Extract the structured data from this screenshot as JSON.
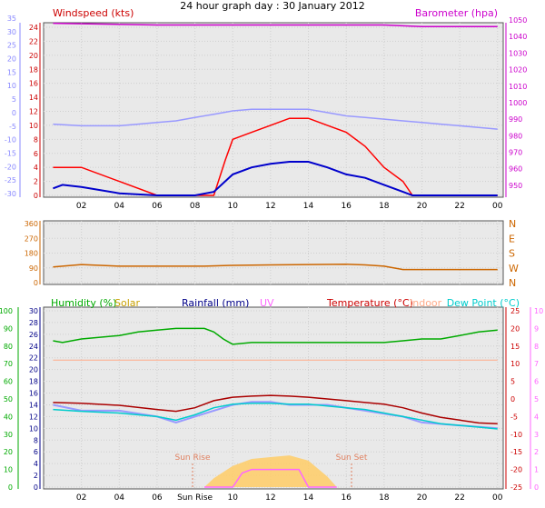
{
  "title": "24 hour graph day : 30 January 2012",
  "colors": {
    "windspeed": "#cc0000",
    "gust": "#ff0000",
    "wind_avg": "#0000cc",
    "barometer": "#cc00cc",
    "temperature_label": "#cc0000",
    "humidity": "#00aa00",
    "solar": "#c8a000",
    "rainfall": "#000088",
    "uv": "#ff66ff",
    "indoor": "#ffaa88",
    "dewpoint": "#00cccc",
    "winddir": "#cc6600",
    "grid": "#cfcfcf"
  },
  "x_ticks": [
    "02",
    "04",
    "06",
    "08",
    "10",
    "12",
    "14",
    "16",
    "18",
    "20",
    "22",
    "00"
  ],
  "x_ticks_bottom": [
    "02",
    "04",
    "06",
    "Sun Rise",
    "10",
    "12",
    "14",
    "16",
    "18",
    "20",
    "22",
    "00"
  ],
  "chart_data": [
    {
      "type": "line",
      "name": "wind",
      "labels": {
        "left": "Windspeed (kts)",
        "right": "Barometer (hpa)"
      },
      "left_axis": {
        "ylim": [
          0,
          24
        ],
        "ticks": [
          "0",
          "2",
          "4",
          "6",
          "8",
          "10",
          "12",
          "14",
          "16",
          "18",
          "20",
          "22",
          "24"
        ]
      },
      "left_outer_axis": {
        "ylim": [
          -30,
          35
        ],
        "ticks": [
          "-30",
          "-25",
          "-20",
          "-15",
          "-10",
          "-5",
          "0",
          "5",
          "10",
          "15",
          "20",
          "25",
          "30",
          "35"
        ]
      },
      "right_axis": {
        "ylim": [
          945,
          1050
        ],
        "ticks": [
          "950",
          "960",
          "970",
          "980",
          "990",
          "1000",
          "1010",
          "1020",
          "1030",
          "1040",
          "1050"
        ]
      },
      "series": [
        {
          "x": [
            0.5,
            2,
            4,
            6,
            7,
            8,
            9,
            9.6,
            10,
            11,
            12,
            13,
            14,
            15,
            16,
            17,
            18,
            19,
            19.5,
            20,
            22,
            24
          ],
          "values": [
            4,
            4,
            2,
            0,
            0,
            0,
            0,
            5,
            8,
            9,
            10,
            11,
            11,
            10,
            9,
            7,
            4,
            2,
            0,
            0,
            0,
            0
          ]
        },
        {
          "x": [
            0.5,
            1,
            2,
            4,
            6,
            8,
            9,
            10,
            11,
            12,
            13,
            14,
            15,
            16,
            17,
            18,
            19,
            19.5,
            20,
            24
          ],
          "values": [
            1,
            1.5,
            1.2,
            0.3,
            0,
            0,
            0.5,
            3,
            4,
            4.5,
            4.8,
            4.8,
            4,
            3,
            2.5,
            1.5,
            0.5,
            0,
            0,
            0
          ]
        },
        {
          "x": [
            0.5,
            2,
            4,
            5,
            6,
            7,
            8,
            9,
            10,
            11,
            12,
            13,
            14,
            15,
            16,
            17,
            18,
            19,
            20,
            21,
            22,
            23,
            24
          ],
          "values": [
            987,
            986,
            986,
            987,
            988,
            989,
            991,
            993,
            995,
            996,
            996,
            996,
            996,
            994,
            992,
            991,
            990,
            989,
            988,
            987,
            986,
            985,
            984
          ]
        },
        {
          "x": [
            0.5,
            6,
            12,
            18,
            20,
            24
          ],
          "values": [
            1048,
            1047,
            1047,
            1047,
            1046,
            1046
          ]
        }
      ]
    },
    {
      "type": "line",
      "name": "wind-direction",
      "left_axis": {
        "ylim": [
          0,
          360
        ],
        "ticks": [
          "0",
          "90",
          "180",
          "270",
          "360"
        ]
      },
      "right_labels": [
        "N",
        "W",
        "S",
        "E",
        "N"
      ],
      "series": [
        {
          "x": [
            0.5,
            1,
            2,
            4,
            6,
            8,
            8.5,
            10,
            12,
            14,
            16,
            17,
            18,
            18.5,
            19,
            20,
            22,
            24
          ],
          "values": [
            95,
            100,
            110,
            100,
            100,
            100,
            100,
            105,
            108,
            110,
            112,
            108,
            100,
            90,
            80,
            80,
            80,
            80
          ]
        }
      ]
    },
    {
      "type": "line",
      "name": "climate",
      "labels": {
        "humidity": "Humidity (%)",
        "solar": "Solar",
        "rainfall": "Rainfall (mm)",
        "uv": "UV",
        "temperature": "Temperature (°C)",
        "indoor": "Indoor",
        "dewpoint": "Dew Point (°C)",
        "sunrise": "Sun Rise",
        "sunset": "Sun Set"
      },
      "humidity_axis": {
        "ylim": [
          0,
          100
        ],
        "ticks": [
          "0",
          "10",
          "20",
          "30",
          "40",
          "50",
          "60",
          "70",
          "80",
          "90",
          "100"
        ]
      },
      "rain_axis": {
        "ylim": [
          0,
          30
        ],
        "ticks": [
          "0",
          "2",
          "4",
          "6",
          "8",
          "10",
          "12",
          "14",
          "16",
          "18",
          "20",
          "22",
          "24",
          "26",
          "28",
          "30"
        ]
      },
      "temp_axis": {
        "ylim": [
          -25,
          25
        ],
        "ticks": [
          "-25",
          "-20",
          "-15",
          "-10",
          "-5",
          "0",
          "5",
          "10",
          "15",
          "20",
          "25"
        ]
      },
      "uv_axis": {
        "ylim": [
          0,
          10
        ],
        "ticks": [
          "0",
          "1",
          "2",
          "3",
          "4",
          "5",
          "6",
          "7",
          "8",
          "9",
          "10"
        ]
      },
      "series": [
        {
          "x": [
            0.5,
            1,
            2,
            4,
            5,
            6,
            7,
            8,
            8.5,
            9,
            9.5,
            10,
            11,
            12,
            13,
            14,
            15,
            16,
            17,
            18,
            19,
            20,
            21,
            22,
            23,
            24
          ],
          "values": [
            83,
            82,
            84,
            86,
            88,
            89,
            90,
            90,
            90,
            88,
            84,
            81,
            82,
            82,
            82,
            82,
            82,
            82,
            82,
            82,
            83,
            84,
            84,
            86,
            88,
            89
          ]
        },
        {
          "x": [
            0.5,
            2,
            4,
            6,
            7,
            8,
            9,
            10,
            11,
            12,
            13,
            14,
            15,
            16,
            17,
            18,
            19,
            20,
            21,
            22,
            23,
            24
          ],
          "values": [
            -1,
            -1.2,
            -1.8,
            -3,
            -3.5,
            -2.5,
            -0.5,
            0.5,
            0.8,
            1,
            0.8,
            0.5,
            0,
            -0.5,
            -1,
            -1.5,
            -2.5,
            -4,
            -5.2,
            -6,
            -6.8,
            -7
          ]
        },
        {
          "x": [
            0.5,
            2,
            4,
            6,
            7,
            8,
            9,
            10,
            11,
            12,
            13,
            14,
            15,
            16,
            17,
            18,
            19,
            20,
            21,
            22,
            23,
            24
          ],
          "values": [
            -3,
            -3.5,
            -4,
            -5,
            -6,
            -4.5,
            -2.5,
            -1.5,
            -1.2,
            -1.2,
            -1.5,
            -1.5,
            -2,
            -2.5,
            -3,
            -4,
            -5,
            -6,
            -7,
            -7.5,
            -8,
            -8.5
          ]
        },
        {
          "x": [
            0.5,
            6,
            12,
            18,
            24
          ],
          "values": [
            11,
            11,
            11,
            11,
            11
          ]
        },
        {
          "x": [
            0.5,
            2,
            4,
            6,
            7,
            8,
            9,
            10,
            11,
            12,
            13,
            14,
            15,
            16,
            17,
            18,
            19,
            20,
            24
          ],
          "values": [
            14,
            13,
            13,
            12,
            11,
            12,
            13,
            14,
            14.5,
            14.5,
            14,
            14,
            14,
            13.5,
            13,
            12.5,
            12,
            11,
            10
          ]
        },
        {
          "x": [
            8.5,
            9,
            10,
            11,
            12,
            13,
            14,
            15,
            15.5
          ],
          "values": [
            0,
            50,
            120,
            160,
            170,
            180,
            150,
            60,
            0
          ]
        },
        {
          "x": [
            8.5,
            10,
            10.5,
            11,
            13.5,
            14,
            15.5
          ],
          "values": [
            0,
            0,
            0.8,
            1.0,
            1.0,
            0,
            0
          ]
        }
      ]
    }
  ]
}
